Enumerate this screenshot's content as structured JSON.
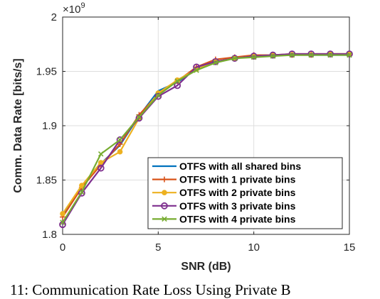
{
  "caption": "11: Communication Rate Loss Using Private B",
  "chart_data": {
    "type": "line",
    "xlabel": "SNR (dB)",
    "ylabel": "Comm. Data Rate [bits/s]",
    "y_exponent_base": "×10",
    "y_exponent_power": "9",
    "xlim": [
      0,
      15
    ],
    "ylim": [
      1.8,
      2.0
    ],
    "y_unit_scale": 1000000000.0,
    "x_ticks": [
      0,
      5,
      10,
      15
    ],
    "x_tick_labels": [
      "0",
      "5",
      "10",
      "15"
    ],
    "y_ticks": [
      1.8,
      1.85,
      1.9,
      1.95,
      2.0
    ],
    "y_tick_labels": [
      "1.8",
      "1.85",
      "1.9",
      "1.95",
      "2"
    ],
    "grid": true,
    "legend_position": "bottom-right",
    "x": [
      0,
      1,
      2,
      3,
      4,
      5,
      6,
      7,
      8,
      9,
      10,
      11,
      12,
      13,
      14,
      15
    ],
    "series": [
      {
        "name": "OTFS with all shared bins",
        "color": "#0072BD",
        "marker": "none",
        "values": [
          1.817,
          1.843,
          1.865,
          1.882,
          1.909,
          1.932,
          1.94,
          1.952,
          1.959,
          1.962,
          1.964,
          1.965,
          1.965,
          1.965,
          1.965,
          1.965
        ]
      },
      {
        "name": "OTFS with 1 private bins",
        "color": "#D95319",
        "marker": "plus",
        "values": [
          1.816,
          1.843,
          1.864,
          1.883,
          1.91,
          1.929,
          1.941,
          1.954,
          1.961,
          1.963,
          1.965,
          1.965,
          1.966,
          1.966,
          1.966,
          1.966
        ]
      },
      {
        "name": "OTFS with 2 private bins",
        "color": "#EDB120",
        "marker": "dot",
        "values": [
          1.819,
          1.845,
          1.866,
          1.876,
          1.907,
          1.93,
          1.942,
          1.952,
          1.959,
          1.962,
          1.964,
          1.965,
          1.965,
          1.965,
          1.966,
          1.966
        ]
      },
      {
        "name": "OTFS with 3 private bins",
        "color": "#7E2F8E",
        "marker": "circle",
        "values": [
          1.809,
          1.838,
          1.861,
          1.887,
          1.907,
          1.927,
          1.937,
          1.954,
          1.959,
          1.962,
          1.964,
          1.965,
          1.966,
          1.966,
          1.966,
          1.966
        ]
      },
      {
        "name": "OTFS with 4 private bins",
        "color": "#77AC30",
        "marker": "x",
        "values": [
          1.811,
          1.839,
          1.874,
          1.887,
          1.908,
          1.928,
          1.941,
          1.951,
          1.958,
          1.962,
          1.963,
          1.964,
          1.965,
          1.965,
          1.965,
          1.965
        ]
      }
    ]
  }
}
